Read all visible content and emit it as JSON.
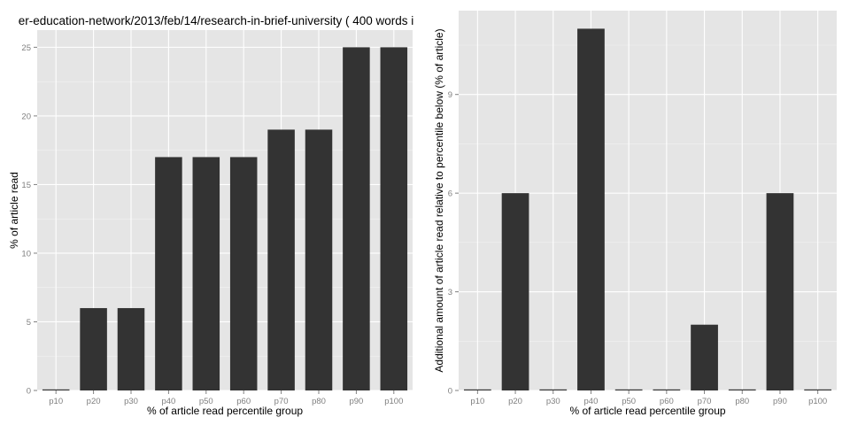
{
  "chart_data": [
    {
      "type": "bar",
      "title": "er-education-network/2013/feb/14/research-in-brief-university ( 400 words i",
      "xlabel": "% of article read percentile group",
      "ylabel": "% of article read",
      "categories": [
        "p10",
        "p20",
        "p30",
        "p40",
        "p50",
        "p60",
        "p70",
        "p80",
        "p90",
        "p100"
      ],
      "values": [
        0,
        6,
        6,
        17,
        17,
        17,
        19,
        19,
        25,
        25
      ],
      "ylim": [
        0,
        26.25
      ],
      "yticks": [
        0,
        5,
        10,
        15,
        20,
        25
      ],
      "grid": true,
      "bar_color": "#333333",
      "panel_color": "#e5e5e5"
    },
    {
      "type": "bar",
      "title": "",
      "xlabel": "% of article read percentile group",
      "ylabel": "Additional amount of article read relative to percentile below (% of article)",
      "categories": [
        "p10",
        "p20",
        "p30",
        "p40",
        "p50",
        "p60",
        "p70",
        "p80",
        "p90",
        "p100"
      ],
      "values": [
        0,
        6,
        0,
        11,
        0,
        0,
        2,
        0,
        6,
        0
      ],
      "ylim": [
        0,
        11.55
      ],
      "yticks": [
        0,
        3,
        6,
        9
      ],
      "grid": true,
      "bar_color": "#333333",
      "panel_color": "#e5e5e5"
    }
  ]
}
